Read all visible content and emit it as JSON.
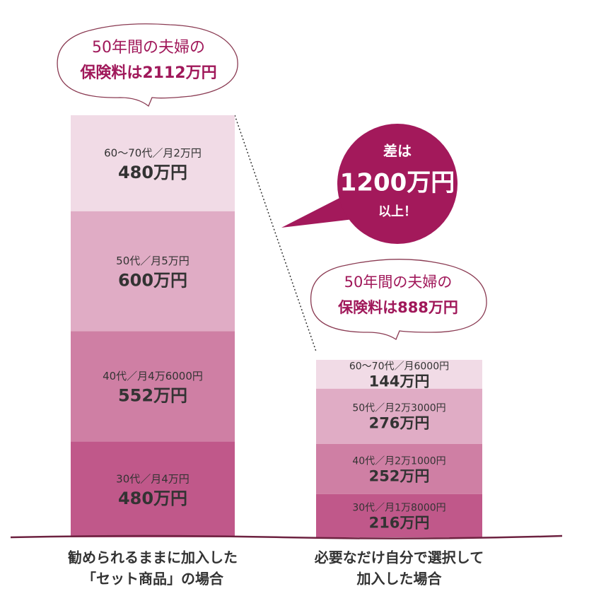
{
  "chart_data": {
    "type": "stacked-bar",
    "categories": [
      [
        "勧められるままに加入した",
        "「セット商品」の場合"
      ],
      [
        "必要なだけ自分で選択して",
        "加入した場合"
      ]
    ],
    "series": [
      {
        "color": "#c0588a",
        "values": [
          480,
          216
        ],
        "value_labels": [
          "480万円",
          "216万円"
        ],
        "labels": [
          "30代／月4万円",
          "30代／月1万8000円"
        ]
      },
      {
        "color": "#cf7fa4",
        "values": [
          552,
          252
        ],
        "value_labels": [
          "552万円",
          "252万円"
        ],
        "labels": [
          "40代／月4万6000円",
          "40代／月2万1000円"
        ]
      },
      {
        "color": "#e0acc5",
        "values": [
          600,
          276
        ],
        "value_labels": [
          "600万円",
          "276万円"
        ],
        "labels": [
          "50代／月5万円",
          "50代／月2万3000円"
        ]
      },
      {
        "color": "#f1dbe6",
        "values": [
          480,
          144
        ],
        "value_labels": [
          "480万円",
          "144万円"
        ],
        "labels": [
          "60～70代／月2万円",
          "60～70代／月6000円"
        ]
      }
    ],
    "ylim": [
      0,
      2112
    ],
    "totals": [
      [
        "50年間の夫婦の",
        "保険料は2112万円"
      ],
      [
        "50年間の夫婦の",
        "保険料は888万円"
      ]
    ],
    "difference": [
      "差は",
      "1200万円",
      "以上！"
    ]
  }
}
